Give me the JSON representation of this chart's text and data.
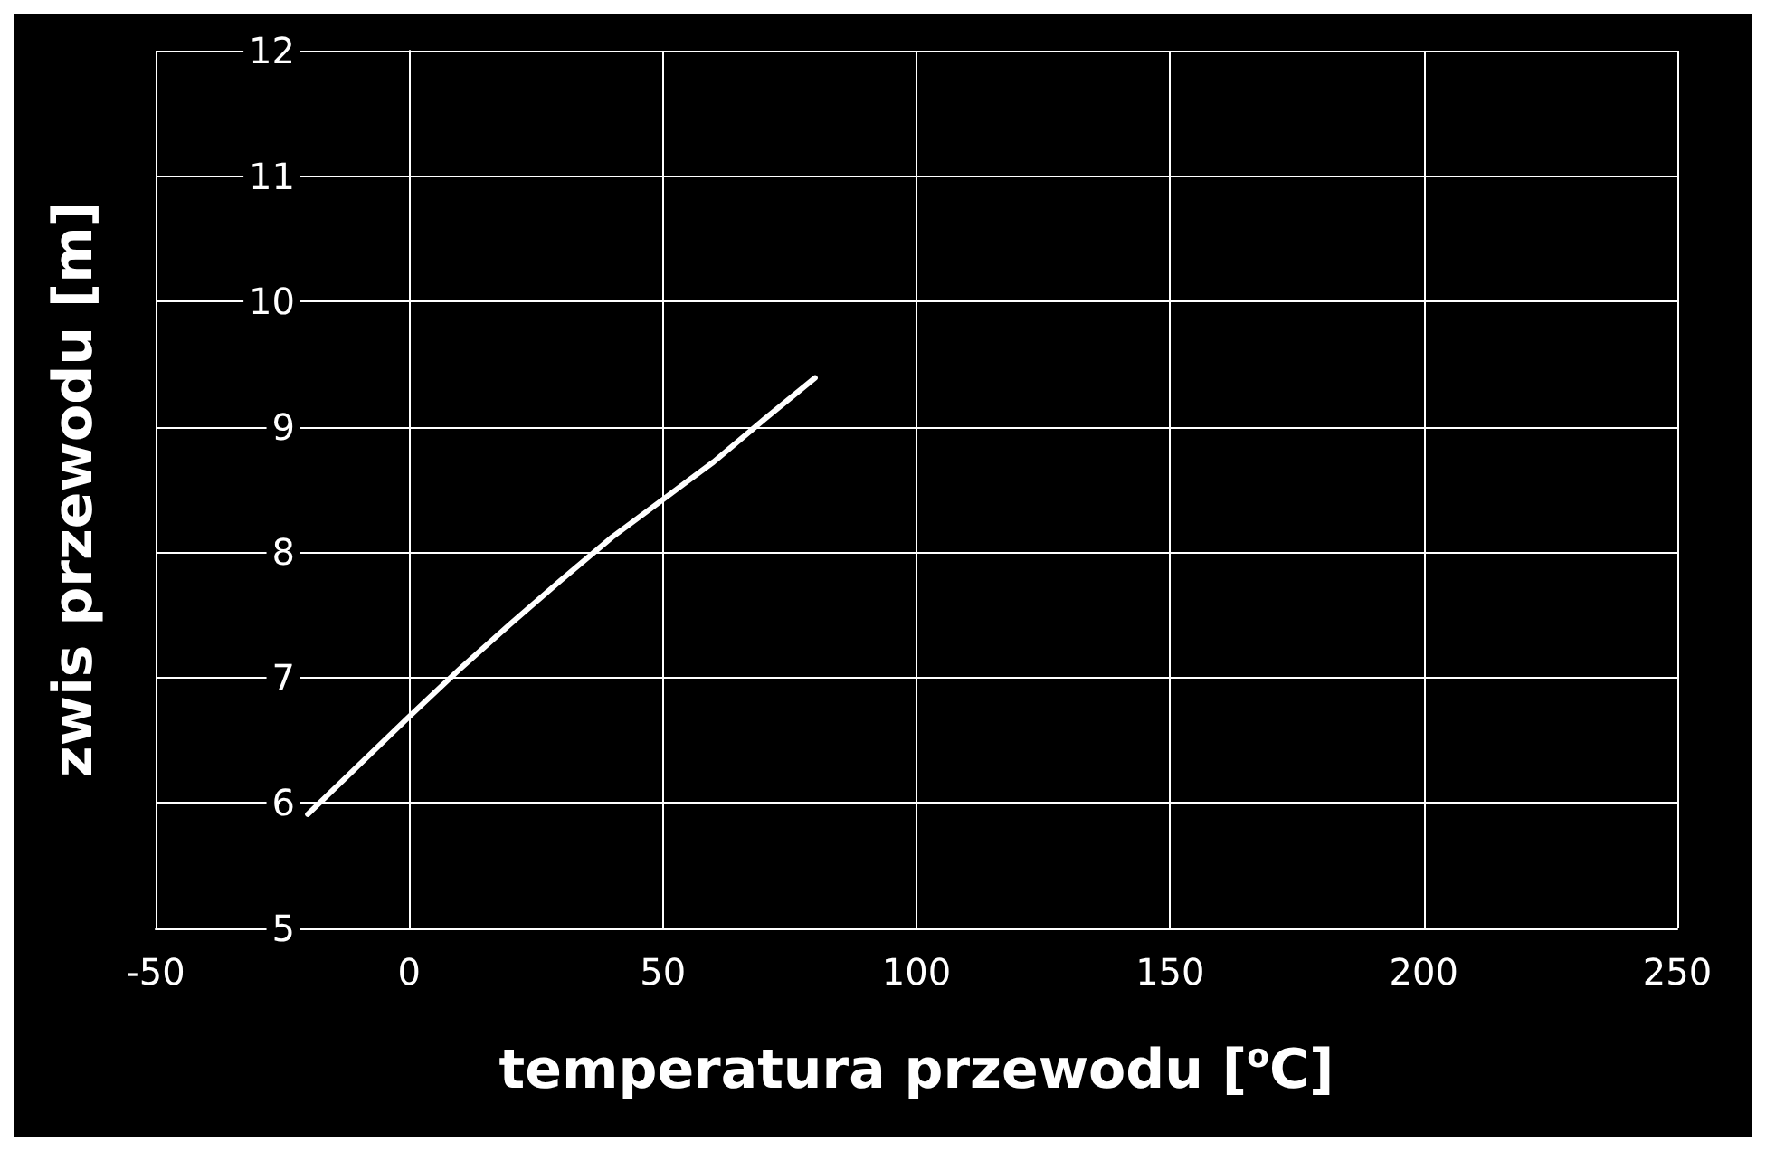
{
  "chart_data": {
    "type": "line",
    "xlabel": "temperatura przewodu [$^{o}$C]",
    "ylabel": "zwis przewodu [m]",
    "x": [
      -20,
      -10,
      0,
      10,
      20,
      30,
      40,
      50,
      60,
      70,
      80
    ],
    "series": [
      {
        "color": "#ffffff",
        "values": [
          5.91,
          6.3,
          6.69,
          7.07,
          7.43,
          7.78,
          8.12,
          8.42,
          8.72,
          9.06,
          9.39
        ]
      }
    ],
    "xlim": [
      -50,
      250
    ],
    "xticks": [
      -50,
      0,
      50,
      100,
      150,
      200,
      250
    ],
    "ylim": [
      5,
      12
    ],
    "yticks": [
      5,
      6,
      7,
      8,
      9,
      10,
      11,
      12
    ],
    "grid": true,
    "marker": "none",
    "line_style": "solid"
  }
}
